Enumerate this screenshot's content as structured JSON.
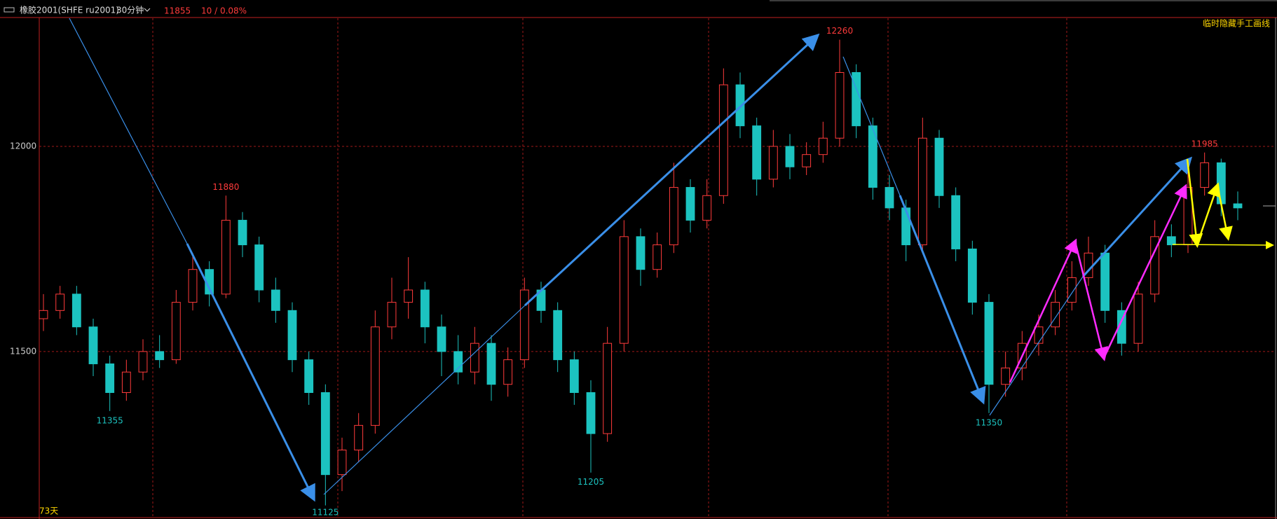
{
  "chart_data": {
    "type": "candlestick",
    "symbol": "橡胶2001(SHFE ru2001)",
    "period": "30分钟",
    "last_price": 11855,
    "change": "10 / 0.08%",
    "hide_drawings_button": "临时隐藏手工画线",
    "days_label": "73天",
    "up_color": "#ff3b3b",
    "down_color": "#1cc3c0",
    "grid": true,
    "ylim": [
      11097,
      12314
    ],
    "yticks": [
      11500,
      12000
    ],
    "open": [
      11580,
      11600,
      11640,
      11560,
      11470,
      11400,
      11450,
      11500,
      11480,
      11620,
      11700,
      11640,
      11820,
      11760,
      11650,
      11600,
      11480,
      11400,
      11200,
      11260,
      11320,
      11560,
      11620,
      11650,
      11560,
      11500,
      11450,
      11520,
      11420,
      11480,
      11650,
      11600,
      11480,
      11400,
      11300,
      11520,
      11780,
      11700,
      11760,
      11900,
      11820,
      11880,
      12150,
      12050,
      11920,
      12000,
      11950,
      11980,
      12020,
      12180,
      12050,
      11900,
      11850,
      11760,
      12020,
      11880,
      11750,
      11620,
      11420,
      11460,
      11520,
      11560,
      11620,
      11680,
      11740,
      11600,
      11520,
      11640,
      11780,
      11760,
      11900,
      11960,
      11860
    ],
    "high": [
      11640,
      11660,
      11660,
      11580,
      11490,
      11480,
      11530,
      11540,
      11650,
      11740,
      11720,
      11880,
      11840,
      11780,
      11680,
      11620,
      11500,
      11420,
      11290,
      11350,
      11600,
      11680,
      11730,
      11670,
      11590,
      11540,
      11560,
      11540,
      11510,
      11680,
      11670,
      11620,
      11500,
      11430,
      11560,
      11820,
      11800,
      11790,
      11960,
      11920,
      11920,
      12190,
      12180,
      12070,
      12040,
      12030,
      12010,
      12060,
      12260,
      12200,
      12070,
      11930,
      11870,
      12070,
      12040,
      11900,
      11770,
      11640,
      11500,
      11550,
      11590,
      11650,
      11720,
      11780,
      11760,
      11620,
      11670,
      11820,
      11810,
      11940,
      11985,
      11970,
      11890
    ],
    "low": [
      11550,
      11580,
      11540,
      11440,
      11355,
      11380,
      11430,
      11460,
      11470,
      11600,
      11610,
      11630,
      11730,
      11620,
      11570,
      11450,
      11370,
      11125,
      11160,
      11230,
      11300,
      11530,
      11580,
      11520,
      11440,
      11420,
      11420,
      11380,
      11390,
      11460,
      11570,
      11450,
      11370,
      11205,
      11280,
      11500,
      11660,
      11680,
      11740,
      11790,
      11800,
      11860,
      12020,
      11880,
      11900,
      11920,
      11930,
      11960,
      12000,
      12020,
      11870,
      11820,
      11720,
      11740,
      11850,
      11720,
      11590,
      11350,
      11390,
      11430,
      11490,
      11540,
      11600,
      11660,
      11570,
      11490,
      11500,
      11620,
      11730,
      11740,
      11880,
      11830,
      11820
    ],
    "close": [
      11600,
      11640,
      11560,
      11470,
      11400,
      11450,
      11500,
      11480,
      11620,
      11700,
      11640,
      11820,
      11760,
      11650,
      11600,
      11480,
      11400,
      11200,
      11260,
      11320,
      11560,
      11620,
      11650,
      11560,
      11500,
      11450,
      11520,
      11420,
      11480,
      11650,
      11600,
      11480,
      11400,
      11300,
      11520,
      11780,
      11700,
      11760,
      11900,
      11820,
      11880,
      12150,
      12050,
      11920,
      12000,
      11950,
      11980,
      12020,
      12180,
      12050,
      11900,
      11850,
      11760,
      12020,
      11880,
      11750,
      11620,
      11420,
      11460,
      11520,
      11560,
      11620,
      11680,
      11740,
      11600,
      11520,
      11640,
      11780,
      11760,
      11900,
      11960,
      11860,
      11850
    ],
    "high_labels": [
      11880,
      12260,
      11985
    ],
    "low_labels": [
      11355,
      11125,
      11205,
      11350
    ]
  }
}
